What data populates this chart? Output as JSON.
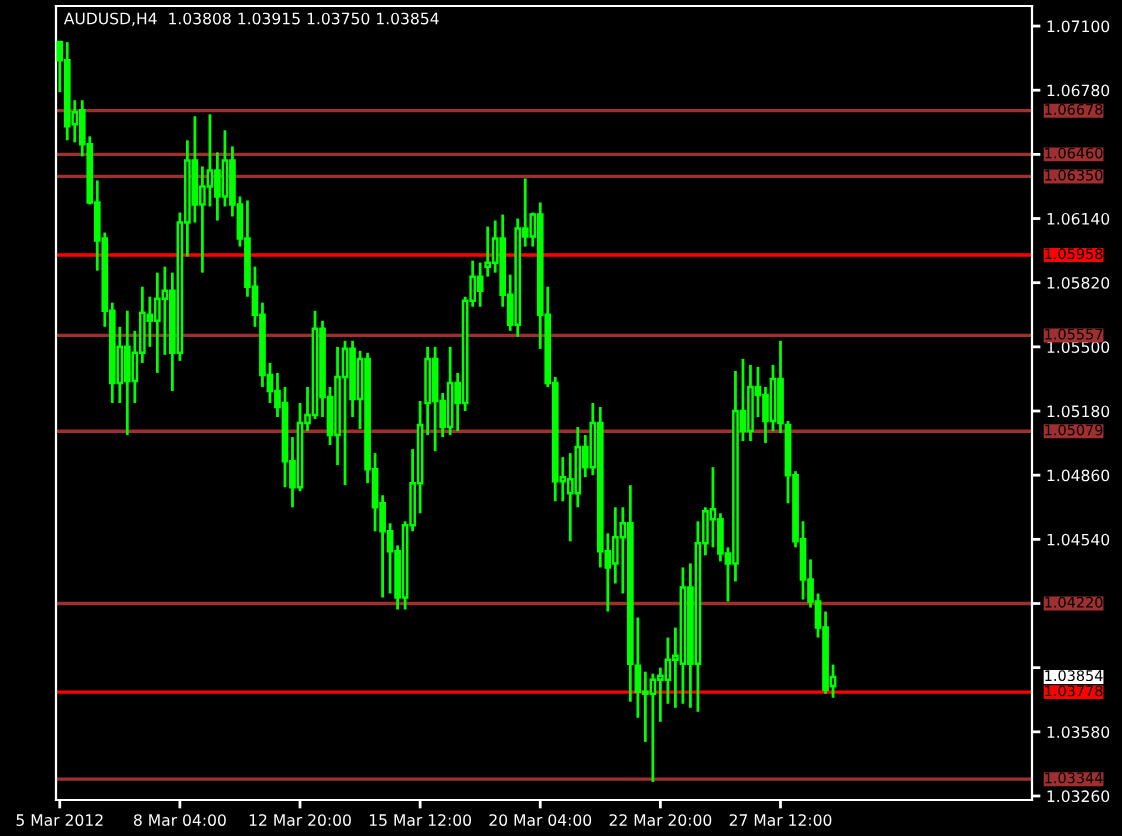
{
  "chart_data": {
    "type": "candlestick",
    "title": "AUDUSD,H4  1.03808 1.03915 1.03750 1.03854",
    "categories": [
      "5 Mar 2012",
      null,
      null,
      null,
      null,
      null,
      null,
      null,
      null,
      null,
      null,
      null,
      null,
      null,
      null,
      null,
      "8 Mar 04:00",
      null,
      null,
      null,
      null,
      null,
      null,
      null,
      null,
      null,
      null,
      null,
      null,
      null,
      null,
      null,
      "12 Mar 20:00",
      null,
      null,
      null,
      null,
      null,
      null,
      null,
      null,
      null,
      null,
      null,
      null,
      null,
      null,
      null,
      "15 Mar 12:00",
      null,
      null,
      null,
      null,
      null,
      null,
      null,
      null,
      null,
      null,
      null,
      null,
      null,
      null,
      null,
      "20 Mar 04:00",
      null,
      null,
      null,
      null,
      null,
      null,
      null,
      null,
      null,
      null,
      null,
      null,
      null,
      null,
      null,
      "22 Mar 20:00",
      null,
      null,
      null,
      null,
      null,
      null,
      null,
      null,
      null,
      null,
      null,
      null,
      null,
      null,
      null,
      "27 Mar 12:00",
      null,
      null,
      null,
      null,
      null,
      null,
      null,
      null,
      null,
      null,
      null,
      null,
      null,
      null,
      null,
      null,
      null,
      null,
      null,
      null,
      null,
      null,
      null,
      null,
      null,
      null,
      null,
      null,
      null,
      null,
      null,
      null,
      null
    ],
    "series": [
      {
        "color": "#00ff00",
        "ohlc": [
          [
            1.0702,
            1.0702,
            1.0677,
            1.0693
          ],
          [
            1.0693,
            1.0702,
            1.0653,
            1.066
          ],
          [
            1.0661,
            1.0673,
            1.0652,
            1.0667
          ],
          [
            1.0668,
            1.0673,
            1.0645,
            1.0651
          ],
          [
            1.0651,
            1.0655,
            1.0621,
            1.0622
          ],
          [
            1.0622,
            1.0633,
            1.0588,
            1.0603
          ],
          [
            1.0604,
            1.0607,
            1.056,
            1.0568
          ],
          [
            1.0568,
            1.0572,
            1.0522,
            1.0532
          ],
          [
            1.0532,
            1.056,
            1.0522,
            1.055
          ],
          [
            1.055,
            1.0568,
            1.0506,
            1.0533
          ],
          [
            1.0533,
            1.0558,
            1.0522,
            1.0547
          ],
          [
            1.0547,
            1.058,
            1.0542,
            1.0567
          ],
          [
            1.0566,
            1.0575,
            1.055,
            1.0563
          ],
          [
            1.0563,
            1.0587,
            1.0537,
            1.0574
          ],
          [
            1.0574,
            1.059,
            1.0546,
            1.0578
          ],
          [
            1.0578,
            1.0587,
            1.0528,
            1.0547
          ],
          [
            1.0547,
            1.0617,
            1.0543,
            1.0612
          ],
          [
            1.0612,
            1.0653,
            1.0595,
            1.0643
          ],
          [
            1.0643,
            1.0665,
            1.0612,
            1.0621
          ],
          [
            1.0621,
            1.064,
            1.0587,
            1.063
          ],
          [
            1.063,
            1.0666,
            1.062,
            1.0638
          ],
          [
            1.0638,
            1.0647,
            1.0613,
            1.0625
          ],
          [
            1.0625,
            1.0658,
            1.062,
            1.0643
          ],
          [
            1.0643,
            1.065,
            1.0615,
            1.0621
          ],
          [
            1.0621,
            1.0625,
            1.06,
            1.0604
          ],
          [
            1.0604,
            1.0623,
            1.0575,
            1.058
          ],
          [
            1.058,
            1.059,
            1.056,
            1.0566
          ],
          [
            1.0566,
            1.0572,
            1.053,
            1.0536
          ],
          [
            1.0536,
            1.0542,
            1.0522,
            1.0528
          ],
          [
            1.0528,
            1.0537,
            1.0515,
            1.052
          ],
          [
            1.0522,
            1.053,
            1.048,
            1.0493
          ],
          [
            1.0493,
            1.0505,
            1.047,
            1.048
          ],
          [
            1.048,
            1.0522,
            1.0478,
            1.0512
          ],
          [
            1.0512,
            1.053,
            1.0508,
            1.0516
          ],
          [
            1.0516,
            1.0568,
            1.0514,
            1.0559
          ],
          [
            1.0559,
            1.0563,
            1.0515,
            1.0525
          ],
          [
            1.0525,
            1.053,
            1.0501,
            1.0506
          ],
          [
            1.0506,
            1.055,
            1.0491,
            1.0535
          ],
          [
            1.0535,
            1.0553,
            1.0481,
            1.0549
          ],
          [
            1.0549,
            1.0553,
            1.0515,
            1.0524
          ],
          [
            1.0524,
            1.0548,
            1.0509,
            1.0544
          ],
          [
            1.0544,
            1.0547,
            1.0482,
            1.0489
          ],
          [
            1.0489,
            1.0497,
            1.0458,
            1.047
          ],
          [
            1.0472,
            1.0476,
            1.0425,
            1.0458
          ],
          [
            1.0458,
            1.0462,
            1.0427,
            1.0448
          ],
          [
            1.0448,
            1.0451,
            1.0419,
            1.0425
          ],
          [
            1.0425,
            1.0463,
            1.0419,
            1.0461
          ],
          [
            1.0461,
            1.0499,
            1.0458,
            1.0482
          ],
          [
            1.0482,
            1.0523,
            1.0467,
            1.0511
          ],
          [
            1.0522,
            1.055,
            1.0506,
            1.0544
          ],
          [
            1.0544,
            1.055,
            1.0498,
            1.0523
          ],
          [
            1.0523,
            1.0527,
            1.0505,
            1.051
          ],
          [
            1.051,
            1.055,
            1.0506,
            1.0532
          ],
          [
            1.0532,
            1.0537,
            1.0508,
            1.0522
          ],
          [
            1.0522,
            1.0575,
            1.0518,
            1.0573
          ],
          [
            1.0573,
            1.0593,
            1.057,
            1.0585
          ],
          [
            1.0585,
            1.0592,
            1.057,
            1.0578
          ],
          [
            1.059,
            1.061,
            1.0585,
            1.0592
          ],
          [
            1.0592,
            1.0613,
            1.0587,
            1.0604
          ],
          [
            1.0604,
            1.0616,
            1.057,
            1.0576
          ],
          [
            1.0576,
            1.0586,
            1.0558,
            1.0561
          ],
          [
            1.0561,
            1.0614,
            1.0555,
            1.0609
          ],
          [
            1.0609,
            1.0634,
            1.06,
            1.0605
          ],
          [
            1.0605,
            1.0617,
            1.06,
            1.0616
          ],
          [
            1.0616,
            1.0622,
            1.0549,
            1.0566
          ],
          [
            1.0566,
            1.058,
            1.053,
            1.0532
          ],
          [
            1.0532,
            1.0535,
            1.0473,
            1.0483
          ],
          [
            1.0483,
            1.0495,
            1.0473,
            1.0485
          ],
          [
            1.0477,
            1.0497,
            1.0453,
            1.0484
          ],
          [
            1.0477,
            1.051,
            1.047,
            1.05
          ],
          [
            1.05,
            1.0506,
            1.0485,
            1.049
          ],
          [
            1.049,
            1.0522,
            1.0486,
            1.0512
          ],
          [
            1.0512,
            1.052,
            1.044,
            1.0448
          ],
          [
            1.0448,
            1.0457,
            1.0418,
            1.044
          ],
          [
            1.0442,
            1.047,
            1.0432,
            1.0455
          ],
          [
            1.0455,
            1.047,
            1.0427,
            1.0462
          ],
          [
            1.0462,
            1.0481,
            1.0373,
            1.0392
          ],
          [
            1.0391,
            1.0415,
            1.0365,
            1.0378
          ],
          [
            1.0378,
            1.0388,
            1.0353,
            1.0377
          ],
          [
            1.0377,
            1.0387,
            1.0333,
            1.0384
          ],
          [
            1.0384,
            1.039,
            1.0363,
            1.0386
          ],
          [
            1.0384,
            1.0405,
            1.0372,
            1.0394
          ],
          [
            1.0394,
            1.041,
            1.037,
            1.0396
          ],
          [
            1.0392,
            1.044,
            1.0372,
            1.043
          ],
          [
            1.043,
            1.0442,
            1.037,
            1.0392
          ],
          [
            1.0392,
            1.0463,
            1.0368,
            1.0452
          ],
          [
            1.0452,
            1.047,
            1.0446,
            1.0468
          ],
          [
            1.0464,
            1.049,
            1.045,
            1.0469
          ],
          [
            1.0464,
            1.0467,
            1.0443,
            1.0447
          ],
          [
            1.0447,
            1.045,
            1.0423,
            1.0442
          ],
          [
            1.0442,
            1.0538,
            1.0433,
            1.0518
          ],
          [
            1.0518,
            1.0544,
            1.0503,
            1.0508
          ],
          [
            1.0508,
            1.0541,
            1.0503,
            1.053
          ],
          [
            1.053,
            1.054,
            1.0515,
            1.0526
          ],
          [
            1.0526,
            1.053,
            1.0502,
            1.0513
          ],
          [
            1.0513,
            1.0541,
            1.0508,
            1.0534
          ],
          [
            1.0534,
            1.0553,
            1.0507,
            1.0512
          ],
          [
            1.0511,
            1.0513,
            1.0472,
            1.0486
          ],
          [
            1.0486,
            1.0488,
            1.045,
            1.0453
          ],
          [
            1.0454,
            1.0463,
            1.0424,
            1.0434
          ],
          [
            1.0434,
            1.0444,
            1.042,
            1.0423
          ],
          [
            1.0423,
            1.0427,
            1.0405,
            1.041
          ],
          [
            1.041,
            1.0418,
            1.0377,
            1.0379
          ],
          [
            1.03808,
            1.03915,
            1.0375,
            1.03854
          ],
          null,
          null,
          null,
          null,
          null,
          null,
          null,
          null,
          null,
          null,
          null,
          null,
          null,
          null,
          null,
          null,
          null,
          null,
          null,
          null,
          null,
          null,
          null,
          null,
          null,
          null
        ]
      }
    ],
    "ylim": [
      1.0324,
      1.072
    ],
    "yticks": [
      {
        "value": 1.071,
        "label": "1.07100"
      },
      {
        "value": 1.0678,
        "label": "1.06780"
      },
      {
        "value": 1.0646,
        "label": null
      },
      {
        "value": 1.0614,
        "label": "1.06140"
      },
      {
        "value": 1.0582,
        "label": "1.05820"
      },
      {
        "value": 1.055,
        "label": "1.05500"
      },
      {
        "value": 1.0518,
        "label": "1.05180"
      },
      {
        "value": 1.0486,
        "label": "1.04860"
      },
      {
        "value": 1.0454,
        "label": "1.04540"
      },
      {
        "value": 1.0422,
        "label": null
      },
      {
        "value": 1.039,
        "label": null
      },
      {
        "value": 1.0358,
        "label": "1.03580"
      },
      {
        "value": 1.0326,
        "label": "1.03260"
      }
    ],
    "ref_lines": [
      {
        "axis": "y",
        "value": 1.06678,
        "label": "1.06678",
        "color": "#a03030"
      },
      {
        "axis": "y",
        "value": 1.0646,
        "label": "1.06460",
        "color": "#a03030"
      },
      {
        "axis": "y",
        "value": 1.0635,
        "label": "1.06350",
        "color": "#a03030"
      },
      {
        "axis": "y",
        "value": 1.05958,
        "label": "1.05958",
        "color": "#ff0000"
      },
      {
        "axis": "y",
        "value": 1.05557,
        "label": "1.05557",
        "color": "#a03030"
      },
      {
        "axis": "y",
        "value": 1.05079,
        "label": "1.05079",
        "color": "#a03030"
      },
      {
        "axis": "y",
        "value": 1.0422,
        "label": "1.04220",
        "color": "#a03030"
      },
      {
        "axis": "y",
        "value": 1.03778,
        "label": "1.03778",
        "color": "#ff0000"
      },
      {
        "axis": "y",
        "value": 1.03344,
        "label": "1.03344",
        "color": "#a03030"
      }
    ],
    "annotations": [
      "1.03854"
    ],
    "grid": false,
    "legend": false
  }
}
